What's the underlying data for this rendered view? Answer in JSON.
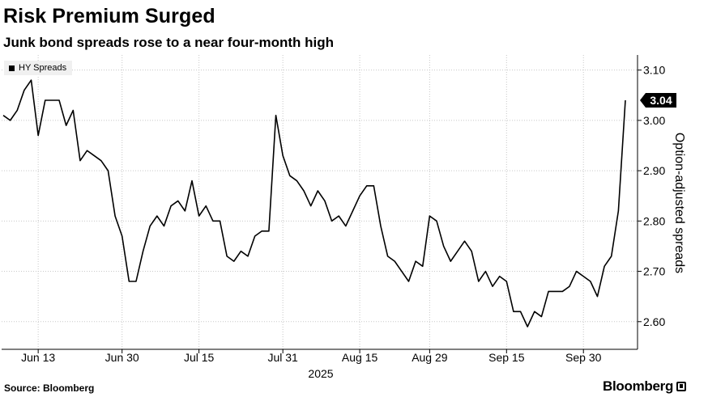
{
  "chart_data": {
    "type": "line",
    "title": "Risk Premium Surged",
    "subtitle": "Junk bond spreads rose to a near four-month high",
    "ylabel": "Option-adjusted spreads",
    "xlabel": "2025",
    "ylim": [
      2.545,
      3.13
    ],
    "y_ticks": [
      "2.60",
      "2.70",
      "2.80",
      "2.90",
      "3.00",
      "3.10"
    ],
    "y_tick_values": [
      2.6,
      2.7,
      2.8,
      2.9,
      3.0,
      3.1
    ],
    "x_ticks": [
      {
        "label": "Jun 13",
        "index": 5
      },
      {
        "label": "Jun 30",
        "index": 17
      },
      {
        "label": "Jul 15",
        "index": 28
      },
      {
        "label": "Jul 31",
        "index": 40
      },
      {
        "label": "Aug 15",
        "index": 51
      },
      {
        "label": "Aug 29",
        "index": 61
      },
      {
        "label": "Sep 15",
        "index": 72
      },
      {
        "label": "Sep 30",
        "index": 83
      }
    ],
    "year_label": "2025",
    "legend_position": "top-left",
    "series": [
      {
        "name": "HY Spreads",
        "values": [
          3.01,
          3.0,
          3.02,
          3.06,
          3.08,
          2.97,
          3.04,
          3.04,
          3.04,
          2.99,
          3.02,
          2.92,
          2.94,
          2.93,
          2.92,
          2.9,
          2.81,
          2.77,
          2.68,
          2.68,
          2.74,
          2.79,
          2.81,
          2.79,
          2.83,
          2.84,
          2.82,
          2.88,
          2.81,
          2.83,
          2.8,
          2.8,
          2.73,
          2.72,
          2.74,
          2.73,
          2.77,
          2.78,
          2.78,
          3.01,
          2.93,
          2.89,
          2.88,
          2.86,
          2.83,
          2.86,
          2.84,
          2.8,
          2.81,
          2.79,
          2.82,
          2.85,
          2.87,
          2.87,
          2.79,
          2.73,
          2.72,
          2.7,
          2.68,
          2.72,
          2.71,
          2.81,
          2.8,
          2.75,
          2.72,
          2.74,
          2.76,
          2.74,
          2.68,
          2.7,
          2.67,
          2.69,
          2.68,
          2.62,
          2.62,
          2.59,
          2.62,
          2.61,
          2.66,
          2.66,
          2.66,
          2.67,
          2.7,
          2.69,
          2.68,
          2.65,
          2.71,
          2.73,
          2.82,
          3.04
        ]
      }
    ],
    "last_value_label": "3.04"
  },
  "footer": {
    "source": "Source: Bloomberg",
    "brand": "Bloomberg"
  },
  "colors": {
    "line": "#000000",
    "grid": "#cccccc",
    "legend_bg": "#f0f0f0"
  }
}
